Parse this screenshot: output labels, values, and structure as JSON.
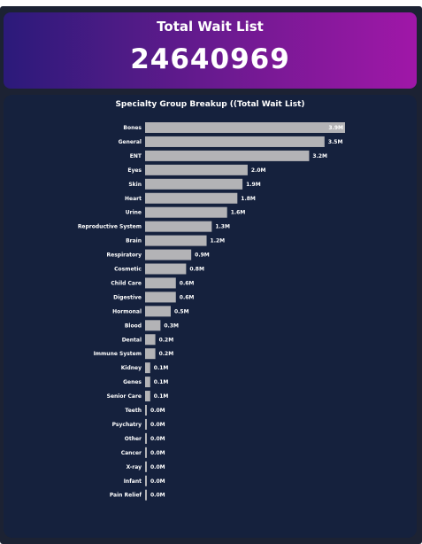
{
  "kpi": {
    "title": "Total Wait List",
    "value": "24640969"
  },
  "chart_data": {
    "type": "bar",
    "orientation": "horizontal",
    "title": "Specialty Group Breakup ((Total Wait List)",
    "categories": [
      "Bones",
      "General",
      "ENT",
      "Eyes",
      "Skin",
      "Heart",
      "Urine",
      "Reproductive System",
      "Brain",
      "Respiratory",
      "Cosmetic",
      "Child Care",
      "Digestive",
      "Hormonal",
      "Blood",
      "Dental",
      "Immune System",
      "Kidney",
      "Genes",
      "Senior Care",
      "Teeth",
      "Psychatry",
      "Other",
      "Cancer",
      "X-ray",
      "Infant",
      "Pain Relief"
    ],
    "values": [
      3.9,
      3.5,
      3.2,
      2.0,
      1.9,
      1.8,
      1.6,
      1.3,
      1.2,
      0.9,
      0.8,
      0.6,
      0.6,
      0.5,
      0.3,
      0.2,
      0.2,
      0.1,
      0.1,
      0.1,
      0.02,
      0.02,
      0.02,
      0.02,
      0.02,
      0.02,
      0.02
    ],
    "value_labels": [
      "3.9M",
      "3.5M",
      "3.2M",
      "2.0M",
      "1.9M",
      "1.8M",
      "1.6M",
      "1.3M",
      "1.2M",
      "0.9M",
      "0.8M",
      "0.6M",
      "0.6M",
      "0.5M",
      "0.3M",
      "0.2M",
      "0.2M",
      "0.1M",
      "0.1M",
      "0.1M",
      "0.0M",
      "0.0M",
      "0.0M",
      "0.0M",
      "0.0M",
      "0.0M",
      "0.0M"
    ],
    "unit": "M",
    "xlim": [
      0,
      3.9
    ],
    "grid": false,
    "bar_color": "#b3b3b6"
  }
}
